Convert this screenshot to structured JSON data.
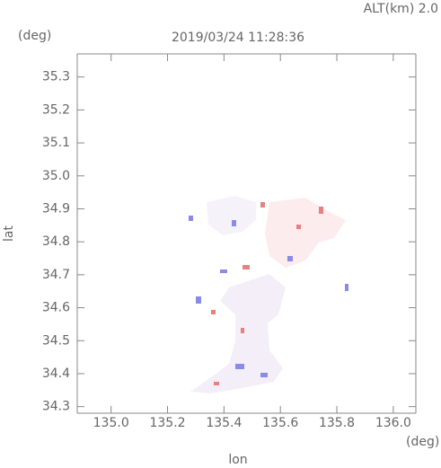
{
  "chart_data": {
    "type": "map",
    "title": "2019/03/24 11:28:36",
    "altitude_label": "ALT(km) 2.0",
    "xlabel": "lon",
    "ylabel": "lat",
    "x_unit": "(deg)",
    "y_unit": "(deg)",
    "xlim": [
      134.88,
      136.08
    ],
    "ylim": [
      34.28,
      35.37
    ],
    "xticks": [
      {
        "value": 135.0,
        "label": "135.0"
      },
      {
        "value": 135.2,
        "label": "135.2"
      },
      {
        "value": 135.4,
        "label": "135.4"
      },
      {
        "value": 135.6,
        "label": "135.6"
      },
      {
        "value": 135.8,
        "label": "135.8"
      },
      {
        "value": 136.0,
        "label": "136.0"
      }
    ],
    "yticks": [
      {
        "value": 34.3,
        "label": "34.3"
      },
      {
        "value": 34.4,
        "label": "34.4"
      },
      {
        "value": 34.5,
        "label": "34.5"
      },
      {
        "value": 34.6,
        "label": "34.6"
      },
      {
        "value": 34.7,
        "label": "34.7"
      },
      {
        "value": 34.8,
        "label": "34.8"
      },
      {
        "value": 34.9,
        "label": "34.9"
      },
      {
        "value": 35.0,
        "label": "35.0"
      },
      {
        "value": 35.1,
        "label": "35.1"
      },
      {
        "value": 35.2,
        "label": "35.2"
      },
      {
        "value": 35.3,
        "label": "35.3"
      }
    ]
  }
}
